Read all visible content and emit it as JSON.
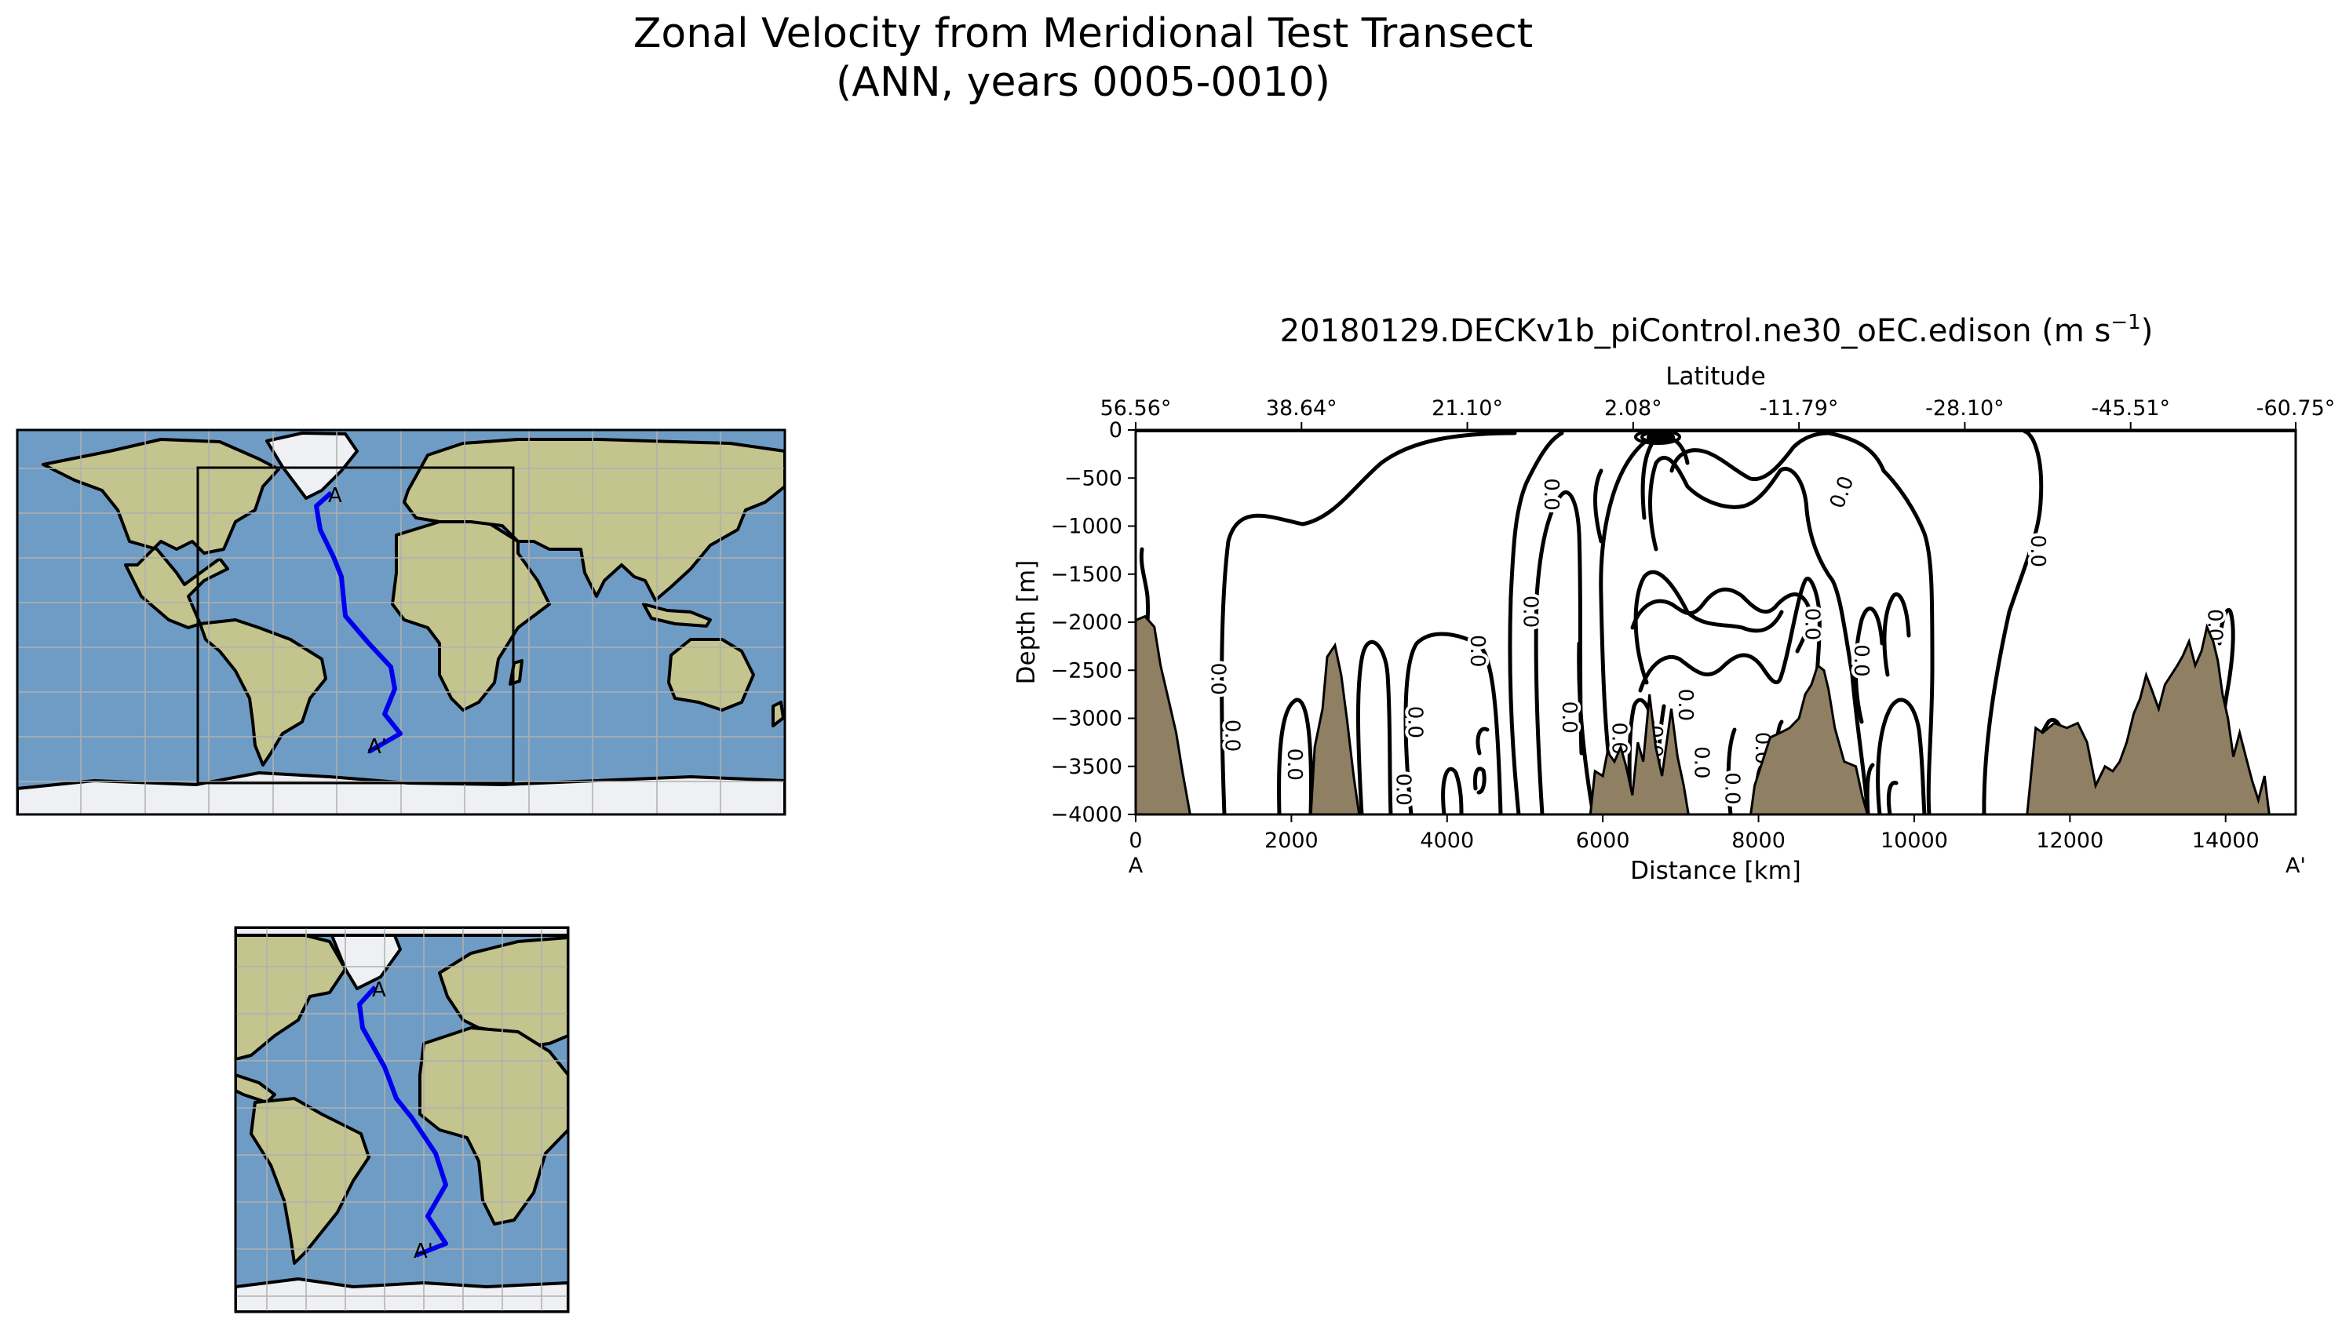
{
  "figure": {
    "title_line1": "Zonal Velocity from Meridional Test Transect",
    "title_line2": "(ANN, years 0005-0010)"
  },
  "maps": {
    "start_label": "A",
    "end_label": "A'",
    "transect_color": "#0000ee",
    "ocean_color": "#6f9cc4",
    "land_color": "#c3c48e",
    "ice_color": "#eef0f3",
    "grid_color": "#b0b0b0"
  },
  "chart_data": {
    "type": "contour",
    "title": "20180129.DECKv1b_piControl.ne30_oEC.edison",
    "units": "(m s",
    "units_exp": "−1",
    "units_close": ")",
    "xlabel": "Distance [km]",
    "ylabel": "Depth [m]",
    "top_axis_label": "Latitude",
    "xlim": [
      0,
      14900
    ],
    "ylim": [
      -4000,
      0
    ],
    "x_ticks": [
      0,
      2000,
      4000,
      6000,
      8000,
      10000,
      12000,
      14000
    ],
    "y_ticks": [
      0,
      -500,
      -1000,
      -1500,
      -2000,
      -2500,
      -3000,
      -3500,
      -4000
    ],
    "top_ticks": [
      {
        "distance": 0,
        "label": "56.56°"
      },
      {
        "distance": 2130,
        "label": "38.64°"
      },
      {
        "distance": 4260,
        "label": "21.10°"
      },
      {
        "distance": 6390,
        "label": "2.08°"
      },
      {
        "distance": 8520,
        "label": "-11.79°"
      },
      {
        "distance": 10650,
        "label": "-28.10°"
      },
      {
        "distance": 12780,
        "label": "-45.51°"
      },
      {
        "distance": 14900,
        "label": "-60.75°"
      }
    ],
    "start_label": "A",
    "end_label": "A'",
    "contour_label": "0.0",
    "contour_label_positions": [
      [
        1050,
        -2590,
        -90
      ],
      [
        1230,
        -3180,
        -90
      ],
      [
        2030,
        -3480,
        -90
      ],
      [
        3430,
        -3740,
        -90
      ],
      [
        3580,
        -3040,
        -90
      ],
      [
        4380,
        -2300,
        -90
      ],
      [
        5330,
        -670,
        -90
      ],
      [
        5060,
        -1890,
        -90
      ],
      [
        5560,
        -2990,
        -90
      ],
      [
        6200,
        -3210,
        -90
      ],
      [
        6660,
        -3240,
        -90
      ],
      [
        7050,
        -2860,
        -90
      ],
      [
        7260,
        -3460,
        -90
      ],
      [
        7650,
        -3730,
        -90
      ],
      [
        8040,
        -3310,
        -90
      ],
      [
        8680,
        -2020,
        -90
      ],
      [
        9310,
        -2400,
        -90
      ],
      [
        9080,
        -650,
        70
      ],
      [
        11580,
        -1260,
        -90
      ],
      [
        13090,
        -3090,
        -90
      ],
      [
        13850,
        -2030,
        -90
      ]
    ],
    "bathymetry_color": "#8f7f63",
    "bathymetry": [
      [
        0,
        -1980
      ],
      [
        120,
        -1940
      ],
      [
        240,
        -2050
      ],
      [
        320,
        -2450
      ],
      [
        420,
        -2800
      ],
      [
        520,
        -3150
      ],
      [
        600,
        -3550
      ],
      [
        700,
        -4000
      ],
      [
        2250,
        -4000
      ],
      [
        2300,
        -3300
      ],
      [
        2400,
        -2900
      ],
      [
        2460,
        -2360
      ],
      [
        2560,
        -2240
      ],
      [
        2640,
        -2550
      ],
      [
        2720,
        -3050
      ],
      [
        2800,
        -3600
      ],
      [
        2870,
        -4000
      ],
      [
        5840,
        -4000
      ],
      [
        5900,
        -3550
      ],
      [
        6000,
        -3600
      ],
      [
        6060,
        -3350
      ],
      [
        6150,
        -3450
      ],
      [
        6230,
        -3300
      ],
      [
        6300,
        -3500
      ],
      [
        6380,
        -3800
      ],
      [
        6450,
        -3250
      ],
      [
        6520,
        -3450
      ],
      [
        6600,
        -2750
      ],
      [
        6680,
        -3300
      ],
      [
        6760,
        -3600
      ],
      [
        6880,
        -2900
      ],
      [
        6960,
        -3400
      ],
      [
        7040,
        -3700
      ],
      [
        7100,
        -4000
      ],
      [
        7900,
        -4000
      ],
      [
        7950,
        -3700
      ],
      [
        8050,
        -3450
      ],
      [
        8150,
        -3200
      ],
      [
        8280,
        -3150
      ],
      [
        8400,
        -3100
      ],
      [
        8520,
        -3000
      ],
      [
        8600,
        -2750
      ],
      [
        8680,
        -2650
      ],
      [
        8760,
        -2450
      ],
      [
        8840,
        -2500
      ],
      [
        8900,
        -2700
      ],
      [
        8980,
        -3100
      ],
      [
        9100,
        -3450
      ],
      [
        9250,
        -3500
      ],
      [
        9330,
        -3800
      ],
      [
        9400,
        -4000
      ],
      [
        11450,
        -4000
      ],
      [
        11500,
        -3600
      ],
      [
        11560,
        -3100
      ],
      [
        11650,
        -3150
      ],
      [
        11800,
        -3050
      ],
      [
        11960,
        -3100
      ],
      [
        12100,
        -3050
      ],
      [
        12220,
        -3250
      ],
      [
        12330,
        -3700
      ],
      [
        12450,
        -3500
      ],
      [
        12550,
        -3550
      ],
      [
        12640,
        -3450
      ],
      [
        12730,
        -3250
      ],
      [
        12820,
        -2950
      ],
      [
        12900,
        -2800
      ],
      [
        12980,
        -2550
      ],
      [
        13050,
        -2700
      ],
      [
        13140,
        -2900
      ],
      [
        13220,
        -2650
      ],
      [
        13300,
        -2550
      ],
      [
        13380,
        -2450
      ],
      [
        13450,
        -2350
      ],
      [
        13530,
        -2200
      ],
      [
        13610,
        -2450
      ],
      [
        13690,
        -2300
      ],
      [
        13760,
        -2050
      ],
      [
        13840,
        -2200
      ],
      [
        13900,
        -2400
      ],
      [
        13960,
        -2750
      ],
      [
        14030,
        -3000
      ],
      [
        14100,
        -3400
      ],
      [
        14180,
        -3150
      ],
      [
        14260,
        -3400
      ],
      [
        14340,
        -3650
      ],
      [
        14420,
        -3850
      ],
      [
        14500,
        -3600
      ],
      [
        14560,
        -4000
      ]
    ]
  }
}
